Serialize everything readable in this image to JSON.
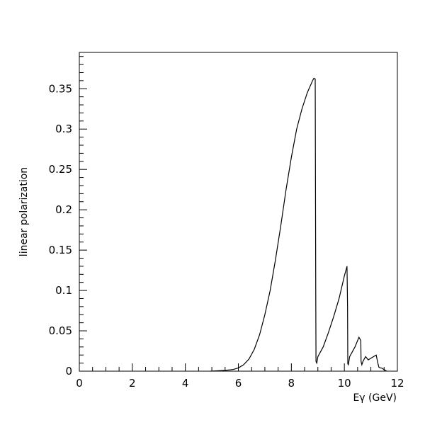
{
  "chart_data": {
    "type": "line",
    "title": "",
    "xlabel": "Eγ (GeV)",
    "ylabel": "linear polarization",
    "xlim": [
      0,
      12
    ],
    "ylim": [
      0,
      0.395
    ],
    "xticks": [
      0,
      2,
      4,
      6,
      8,
      10,
      12
    ],
    "xtick_labels": [
      "0",
      "2",
      "4",
      "6",
      "8",
      "10",
      "12"
    ],
    "yticks": [
      0,
      0.05,
      0.1,
      0.15,
      0.2,
      0.25,
      0.3,
      0.35
    ],
    "ytick_labels": [
      "0",
      "0.05",
      "0.1",
      "0.15",
      "0.2",
      "0.25",
      "0.3",
      "0.35"
    ],
    "grid": false,
    "series": [
      {
        "color": "#000000",
        "x": [
          4.95,
          5.5,
          5.8,
          6.0,
          6.2,
          6.4,
          6.6,
          6.8,
          7.0,
          7.2,
          7.4,
          7.6,
          7.8,
          8.0,
          8.2,
          8.4,
          8.6,
          8.8,
          8.85,
          8.9,
          8.92,
          8.93,
          8.96,
          9.0,
          9.2,
          9.4,
          9.6,
          9.8,
          10.0,
          10.1,
          10.12,
          10.13,
          10.15,
          10.2,
          10.4,
          10.55,
          10.62,
          10.63,
          10.66,
          10.7,
          10.8,
          10.9,
          11.0,
          11.1,
          11.2,
          11.25,
          11.3,
          11.35,
          11.4,
          11.5,
          11.6
        ],
        "y": [
          0.0,
          0.001,
          0.002,
          0.004,
          0.008,
          0.015,
          0.027,
          0.045,
          0.07,
          0.1,
          0.138,
          0.18,
          0.225,
          0.265,
          0.3,
          0.325,
          0.345,
          0.36,
          0.363,
          0.362,
          0.1,
          0.012,
          0.01,
          0.018,
          0.03,
          0.048,
          0.068,
          0.09,
          0.118,
          0.13,
          0.08,
          0.009,
          0.008,
          0.018,
          0.03,
          0.042,
          0.038,
          0.012,
          0.008,
          0.012,
          0.018,
          0.014,
          0.016,
          0.018,
          0.02,
          0.012,
          0.005,
          0.004,
          0.004,
          0.002,
          0.0
        ]
      }
    ]
  }
}
